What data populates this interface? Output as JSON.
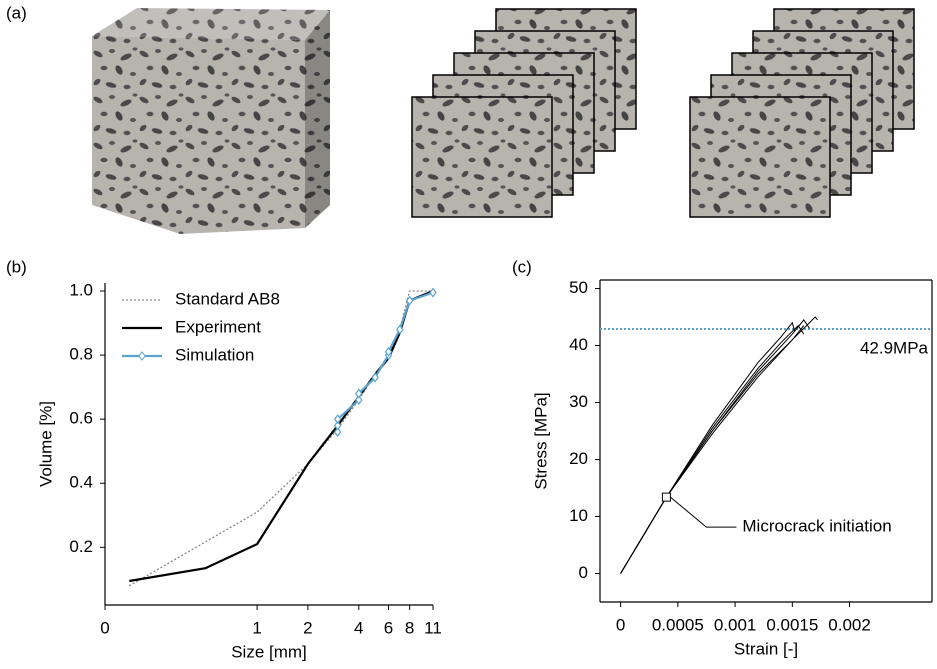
{
  "figure_label": "(a)",
  "chart_data": [
    {
      "type": "line",
      "panel_label": "(b)",
      "xlabel": "Size [mm]",
      "ylabel": "Volume [%]",
      "xscale": "symlog",
      "xlim": [
        0,
        11
      ],
      "ylim": [
        0.02,
        1.025
      ],
      "xticks": [
        0,
        1,
        2,
        4,
        6,
        8,
        11
      ],
      "yticks": [
        0.2,
        0.4,
        0.6,
        0.8,
        {
          "value": 1,
          "label": "1.0"
        }
      ],
      "spines": [
        "left",
        "bottom"
      ],
      "legend": "upper left",
      "series": [
        {
          "name": "Standard AB8",
          "color": "#888888",
          "style": "dotted",
          "x": [
            0.16,
            1,
            2,
            3,
            4,
            5,
            6,
            7,
            8,
            11
          ],
          "values": [
            0.08,
            0.31,
            0.46,
            0.57,
            0.66,
            0.74,
            0.8,
            0.88,
            1.0,
            1.0
          ]
        },
        {
          "name": "Experiment",
          "color": "#000000",
          "style": "solid",
          "x": [
            0.16,
            0.66,
            1,
            2,
            3,
            4,
            5,
            6,
            7,
            8,
            11
          ],
          "values": [
            0.095,
            0.135,
            0.21,
            0.46,
            0.58,
            0.67,
            0.74,
            0.79,
            0.87,
            0.97,
            1.0
          ]
        },
        {
          "name": "Simulation",
          "color": "#5ba3d0",
          "style": "solid",
          "marker": "diamond",
          "x": [
            3,
            3,
            3,
            4,
            4,
            5,
            6,
            6,
            7,
            8,
            11
          ],
          "values": [
            0.56,
            0.58,
            0.6,
            0.66,
            0.68,
            0.73,
            0.8,
            0.81,
            0.88,
            0.97,
            0.995
          ]
        }
      ]
    },
    {
      "type": "line",
      "panel_label": "(c)",
      "xlabel": "Strain [-]",
      "ylabel": "Stress [MPa]",
      "xscale": "linear",
      "xlim": [
        -0.00018,
        0.00272
      ],
      "ylim": [
        -5,
        51.5
      ],
      "xticks": [
        0,
        0.0005,
        0.001,
        0.0015,
        0.002
      ],
      "yticks": [
        0,
        10,
        20,
        30,
        40,
        50
      ],
      "spines": [
        "left",
        "bottom",
        "top",
        "right"
      ],
      "hline": {
        "value": 42.9,
        "label": "42.9MPa",
        "color": "#5ba3d0"
      },
      "annotation": {
        "text": "Microcrack initiation",
        "x": 0.0004,
        "y": 13.4
      },
      "series": [
        {
          "color": "#000000",
          "style": "solid",
          "x": [
            0,
            0.0004,
            0.0008,
            0.0012,
            0.0014,
            0.00155,
            0.0016
          ],
          "values": [
            0,
            13.4,
            25.5,
            36,
            40.5,
            43.5,
            42
          ]
        },
        {
          "color": "#000000",
          "style": "solid",
          "x": [
            0,
            0.0004,
            0.0008,
            0.0012,
            0.0015,
            0.0016,
            0.00165
          ],
          "values": [
            0,
            13.4,
            25,
            35.5,
            42,
            44.5,
            43
          ]
        },
        {
          "color": "#000000",
          "style": "solid",
          "x": [
            0,
            0.0004,
            0.0008,
            0.0012,
            0.0015,
            0.0017,
            0.00172
          ],
          "values": [
            0,
            13.4,
            25,
            35,
            41,
            45,
            44.5
          ]
        },
        {
          "color": "#000000",
          "style": "solid",
          "x": [
            0,
            0.0004,
            0.0008,
            0.0012,
            0.0014,
            0.0015,
            0.00152
          ],
          "values": [
            0,
            13.4,
            26,
            37,
            41.5,
            44,
            42.5
          ]
        },
        {
          "color": "#000000",
          "style": "solid",
          "x": [
            0,
            0.0004,
            0.0008,
            0.0012,
            0.0015,
            0.0016
          ],
          "values": [
            0,
            13.4,
            24.5,
            34.5,
            41,
            43.5
          ]
        }
      ]
    }
  ]
}
